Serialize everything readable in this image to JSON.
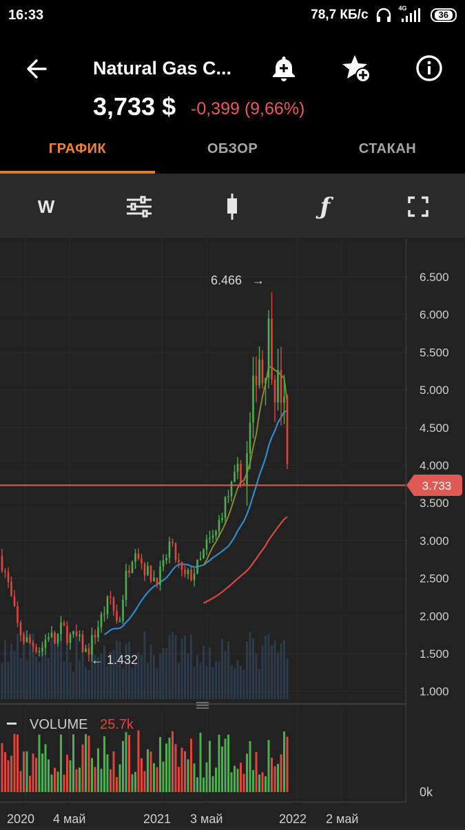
{
  "status_bar": {
    "time": "16:33",
    "net_speed": "78,7 КБ/с",
    "network": "4G",
    "battery": "36"
  },
  "header": {
    "title": "Natural Gas C...",
    "price": "3,733 $",
    "change": "-0,399 (9,66%)",
    "change_color": "#ea5a5a"
  },
  "tabs": [
    {
      "label": "ГРАФИК",
      "active": true
    },
    {
      "label": "ОБЗОР",
      "active": false
    },
    {
      "label": "СТАКАН",
      "active": false
    }
  ],
  "toolbar": {
    "timeframe_label": "W",
    "icons": [
      "sliders-icon",
      "candlestick-icon",
      "function-icon",
      "fullscreen-icon"
    ]
  },
  "chart_data": {
    "type": "candlestick",
    "y_axis_ticks": [
      "6.500",
      "6.000",
      "5.500",
      "5.000",
      "4.500",
      "4.000",
      "3.500",
      "3.000",
      "2.500",
      "2.000",
      "1.500",
      "1.000"
    ],
    "x_axis_ticks": [
      "2020",
      "4 май",
      "2021",
      "3 май",
      "2022",
      "2 май"
    ],
    "current_price_label": "3.733",
    "current_price": 3.733,
    "max_label": "6.466",
    "min_label": "1.432",
    "volume_label": "VOLUME",
    "volume_value": "25.7k",
    "volume_axis_label": "0k",
    "colors": {
      "up": "#4caf50",
      "down": "#e0463c",
      "ma_fast": "#8a8a2a",
      "ma_mid": "#2f8bd0",
      "ma_slow": "#d84a40",
      "price_line": "#e05a55"
    }
  }
}
